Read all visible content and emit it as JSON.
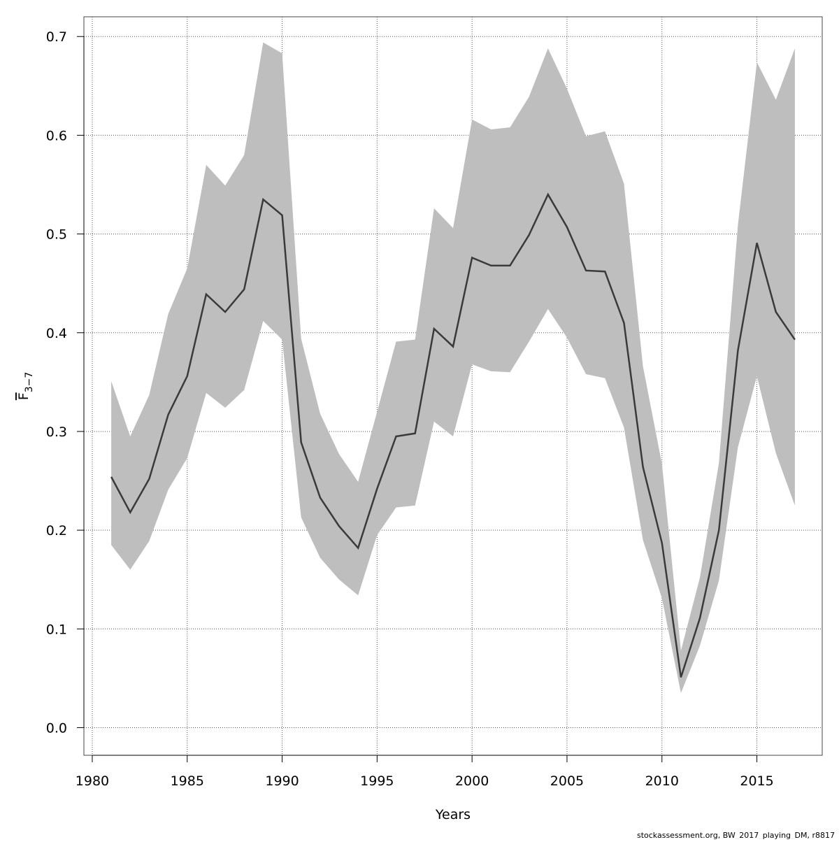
{
  "chart_data": {
    "type": "line",
    "x": [
      1981,
      1982,
      1983,
      1984,
      1985,
      1986,
      1987,
      1988,
      1989,
      1990,
      1991,
      1992,
      1993,
      1994,
      1995,
      1996,
      1997,
      1998,
      1999,
      2000,
      2001,
      2002,
      2003,
      2004,
      2005,
      2006,
      2007,
      2008,
      2009,
      2010,
      2011,
      2012,
      2013,
      2014,
      2015,
      2016,
      2017
    ],
    "values": [
      0.254,
      0.218,
      0.252,
      0.317,
      0.356,
      0.439,
      0.421,
      0.444,
      0.535,
      0.519,
      0.289,
      0.233,
      0.204,
      0.182,
      0.242,
      0.295,
      0.298,
      0.404,
      0.386,
      0.476,
      0.468,
      0.468,
      0.499,
      0.54,
      0.507,
      0.463,
      0.462,
      0.41,
      0.264,
      0.187,
      0.051,
      0.111,
      0.2,
      0.382,
      0.491,
      0.421,
      0.393
    ],
    "upper": [
      0.351,
      0.295,
      0.337,
      0.419,
      0.465,
      0.57,
      0.549,
      0.58,
      0.694,
      0.683,
      0.394,
      0.318,
      0.277,
      0.249,
      0.32,
      0.391,
      0.393,
      0.526,
      0.506,
      0.616,
      0.606,
      0.608,
      0.639,
      0.688,
      0.647,
      0.599,
      0.604,
      0.551,
      0.366,
      0.267,
      0.078,
      0.152,
      0.268,
      0.509,
      0.674,
      0.636,
      0.688
    ],
    "lower": [
      0.185,
      0.16,
      0.189,
      0.241,
      0.273,
      0.339,
      0.324,
      0.342,
      0.412,
      0.393,
      0.213,
      0.172,
      0.15,
      0.134,
      0.195,
      0.223,
      0.225,
      0.31,
      0.295,
      0.368,
      0.361,
      0.36,
      0.391,
      0.424,
      0.395,
      0.358,
      0.354,
      0.304,
      0.19,
      0.131,
      0.035,
      0.083,
      0.149,
      0.284,
      0.356,
      0.278,
      0.225
    ],
    "color": "#3a3a3a",
    "band_color": "#bebebe",
    "xlabel": "Years",
    "ylabel_main": "F",
    "ylabel_sub": "3−7",
    "xlim": [
      1979.56,
      2018.44
    ],
    "ylim": [
      -0.028,
      0.72
    ],
    "xticks": [
      1980,
      1985,
      1990,
      1995,
      2000,
      2005,
      2010,
      2015
    ],
    "yticks": [
      {
        "value": 0,
        "label": "0.0"
      },
      0.1,
      0.2,
      0.3,
      0.4,
      0.5,
      0.6,
      0.7
    ],
    "grid": true,
    "footer": "stockassessment.org, BW_2017_playing_DM, r8817"
  }
}
